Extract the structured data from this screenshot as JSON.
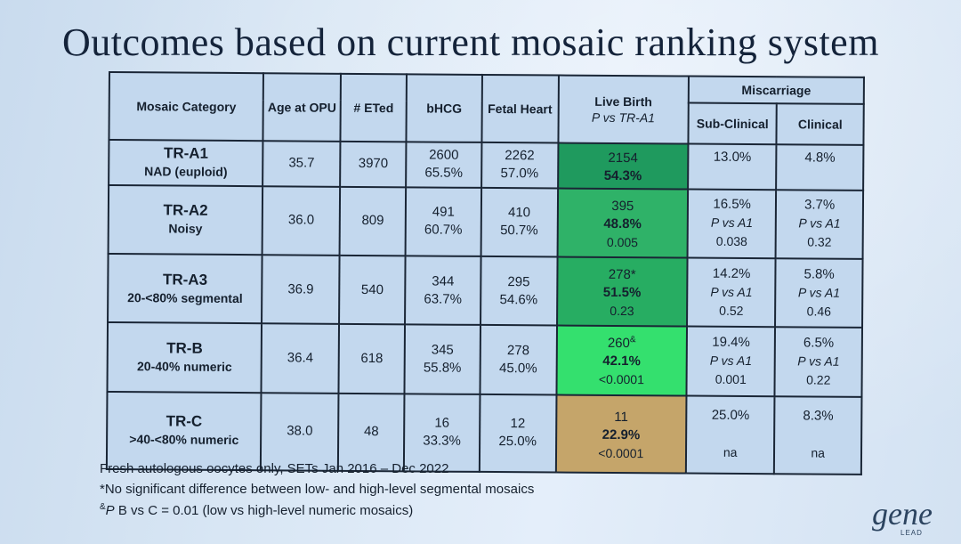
{
  "slide": {
    "title": "Outcomes based on current mosaic ranking system"
  },
  "table": {
    "headers": {
      "category": "Mosaic Category",
      "age": "Age at OPU",
      "eted": "# ETed",
      "bhcg": "bHCG",
      "fetal": "Fetal Heart",
      "live": "Live Birth",
      "live_sub": "P vs TR-A1",
      "misc": "Miscarriage",
      "subclinical": "Sub-Clinical",
      "clinical": "Clinical"
    },
    "rows": [
      {
        "cat": "TR-A1",
        "desc": "NAD (euploid)",
        "age": "35.7",
        "eted": "3970",
        "bhcg_n": "2600",
        "bhcg_p": "65.5%",
        "fh_n": "2262",
        "fh_p": "57.0%",
        "lb_n": "2154",
        "lb_sup": "",
        "lb_p": "54.3%",
        "lb_pv": "",
        "sub_p": "13.0%",
        "sub_l": "",
        "sub_v": "",
        "cl_p": "4.8%",
        "cl_l": "",
        "cl_v": "",
        "color": "#1f9a5e"
      },
      {
        "cat": "TR-A2",
        "desc": "Noisy",
        "age": "36.0",
        "eted": "809",
        "bhcg_n": "491",
        "bhcg_p": "60.7%",
        "fh_n": "410",
        "fh_p": "50.7%",
        "lb_n": "395",
        "lb_sup": "",
        "lb_p": "48.8%",
        "lb_pv": "0.005",
        "sub_p": "16.5%",
        "sub_l": "P vs A1",
        "sub_v": "0.038",
        "cl_p": "3.7%",
        "cl_l": "P vs A1",
        "cl_v": "0.32",
        "color": "#2fb268"
      },
      {
        "cat": "TR-A3",
        "desc": "20-<80% segmental",
        "age": "36.9",
        "eted": "540",
        "bhcg_n": "344",
        "bhcg_p": "63.7%",
        "fh_n": "295",
        "fh_p": "54.6%",
        "lb_n": "278*",
        "lb_sup": "",
        "lb_p": "51.5%",
        "lb_pv": "0.23",
        "sub_p": "14.2%",
        "sub_l": "P vs A1",
        "sub_v": "0.52",
        "cl_p": "5.8%",
        "cl_l": "P vs A1",
        "cl_v": "0.46",
        "color": "#27ad62"
      },
      {
        "cat": "TR-B",
        "desc": "20-40% numeric",
        "age": "36.4",
        "eted": "618",
        "bhcg_n": "345",
        "bhcg_p": "55.8%",
        "fh_n": "278",
        "fh_p": "45.0%",
        "lb_n": "260",
        "lb_sup": "&",
        "lb_p": "42.1%",
        "lb_pv": "<0.0001",
        "sub_p": "19.4%",
        "sub_l": "P vs A1",
        "sub_v": "0.001",
        "cl_p": "6.5%",
        "cl_l": "P vs A1",
        "cl_v": "0.22",
        "color": "#34e06e"
      },
      {
        "cat": "TR-C",
        "desc": ">40-<80% numeric",
        "age": "38.0",
        "eted": "48",
        "bhcg_n": "16",
        "bhcg_p": "33.3%",
        "fh_n": "12",
        "fh_p": "25.0%",
        "lb_n": "11",
        "lb_sup": "",
        "lb_p": "22.9%",
        "lb_pv": "<0.0001",
        "sub_p": "25.0%",
        "sub_l": "",
        "sub_v": "na",
        "cl_p": "8.3%",
        "cl_l": "",
        "cl_v": "na",
        "color": "#c5a56a"
      }
    ]
  },
  "footnotes": {
    "line1": "Fresh autologous oocytes only, SETs Jan 2016 – Dec 2022",
    "line2": "*No significant difference between low- and high-level segmental mosaics",
    "line3_sup": "&",
    "line3_p": "P",
    "line3": " B vs C = 0.01 (low vs high-level numeric mosaics)"
  },
  "logo": {
    "text": "gene",
    "sub": "LEAD"
  }
}
